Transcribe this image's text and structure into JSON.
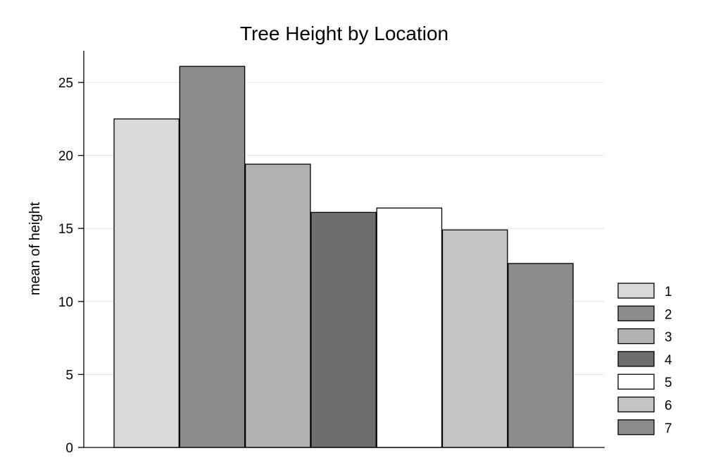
{
  "chart_data": {
    "type": "bar",
    "title": "Tree Height by Location",
    "xlabel": "",
    "ylabel": "mean of height",
    "ylim": [
      0,
      27.2
    ],
    "yticks": [
      0,
      5,
      10,
      15,
      20,
      25
    ],
    "grid": true,
    "legend_position": "right",
    "series": [
      {
        "name": "1",
        "value": 22.5,
        "color": "#d9d9d9"
      },
      {
        "name": "2",
        "value": 26.1,
        "color": "#8c8c8c"
      },
      {
        "name": "3",
        "value": 19.4,
        "color": "#b3b3b3"
      },
      {
        "name": "4",
        "value": 16.1,
        "color": "#6e6e6e"
      },
      {
        "name": "5",
        "value": 16.4,
        "color": "#ffffff"
      },
      {
        "name": "6",
        "value": 14.9,
        "color": "#c4c4c4"
      },
      {
        "name": "7",
        "value": 12.6,
        "color": "#8c8c8c"
      }
    ]
  }
}
